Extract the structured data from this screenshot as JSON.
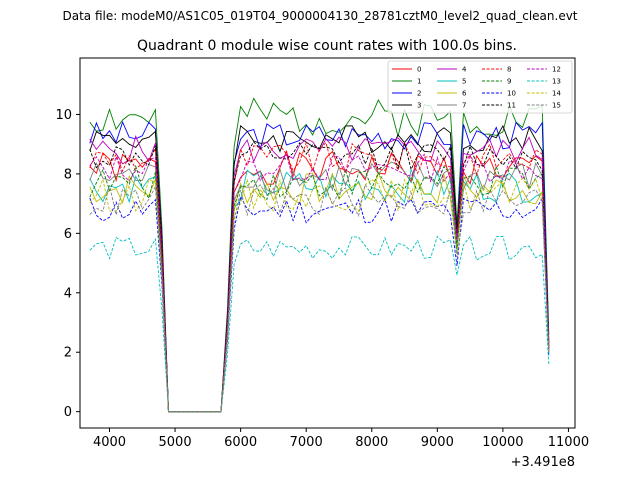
{
  "figure": {
    "suptitle": "Data file: modeM0/AS1C05_019T04_9000004130_28781cztM0_level2_quad_clean.evt"
  },
  "chart_data": {
    "type": "line",
    "title": "Quadrant 0 module wise count rates with 100.0s bins.",
    "xlabel": "",
    "ylabel": "",
    "x_offset_label": "+3.491e8",
    "xlim": [
      3550,
      11100
    ],
    "ylim": [
      -0.55,
      11.9
    ],
    "xticks": [
      4000,
      5000,
      6000,
      7000,
      8000,
      9000,
      10000,
      11000
    ],
    "yticks": [
      0,
      2,
      4,
      6,
      8,
      10
    ],
    "legend_position": "upper right",
    "legend_columns": 4,
    "series": [
      {
        "name": "0",
        "color": "#ff0000",
        "dash": "solid",
        "base": 8.2,
        "amp": 0.35,
        "tailend": 2.1,
        "dip": 5.8,
        "seed": 1
      },
      {
        "name": "1",
        "color": "#008000",
        "dash": "solid",
        "base": 9.9,
        "amp": 0.4,
        "tailend": 2.6,
        "dip": 6.3,
        "seed": 2
      },
      {
        "name": "2",
        "color": "#0000ff",
        "dash": "solid",
        "base": 9.3,
        "amp": 0.3,
        "tailend": 2.4,
        "dip": 6.0,
        "seed": 3
      },
      {
        "name": "3",
        "color": "#000000",
        "dash": "solid",
        "base": 9.2,
        "amp": 0.3,
        "tailend": 2.3,
        "dip": 6.1,
        "seed": 4
      },
      {
        "name": "4",
        "color": "#bf00bf",
        "dash": "solid",
        "base": 8.8,
        "amp": 0.3,
        "tailend": 2.2,
        "dip": 5.9,
        "seed": 5
      },
      {
        "name": "5",
        "color": "#00bfbf",
        "dash": "solid",
        "base": 7.6,
        "amp": 0.35,
        "tailend": 2.0,
        "dip": 5.4,
        "seed": 6
      },
      {
        "name": "6",
        "color": "#bfbf00",
        "dash": "solid",
        "base": 7.5,
        "amp": 0.35,
        "tailend": 2.0,
        "dip": 5.5,
        "seed": 7
      },
      {
        "name": "7",
        "color": "#808080",
        "dash": "solid",
        "base": 7.9,
        "amp": 0.35,
        "tailend": 2.1,
        "dip": 5.6,
        "seed": 8
      },
      {
        "name": "8",
        "color": "#ff0000",
        "dash": "dashed",
        "base": 8.5,
        "amp": 0.35,
        "tailend": 2.2,
        "dip": 5.9,
        "seed": 9
      },
      {
        "name": "9",
        "color": "#008000",
        "dash": "dashed",
        "base": 7.7,
        "amp": 0.35,
        "tailend": 2.0,
        "dip": 5.5,
        "seed": 10
      },
      {
        "name": "10",
        "color": "#0000ff",
        "dash": "dashed",
        "base": 6.8,
        "amp": 0.3,
        "tailend": 1.9,
        "dip": 4.9,
        "seed": 11
      },
      {
        "name": "11",
        "color": "#000000",
        "dash": "dashed",
        "base": 8.6,
        "amp": 0.3,
        "tailend": 2.2,
        "dip": 6.0,
        "seed": 12
      },
      {
        "name": "12",
        "color": "#bf00bf",
        "dash": "dashed",
        "base": 8.2,
        "amp": 0.3,
        "tailend": 2.1,
        "dip": 5.8,
        "seed": 13
      },
      {
        "name": "13",
        "color": "#00bfbf",
        "dash": "dashed",
        "base": 5.5,
        "amp": 0.25,
        "tailend": 1.6,
        "dip": 4.6,
        "seed": 14
      },
      {
        "name": "14",
        "color": "#bfbf00",
        "dash": "dashed",
        "base": 7.3,
        "amp": 0.35,
        "tailend": 2.0,
        "dip": 5.3,
        "seed": 15
      },
      {
        "name": "15",
        "color": "#808080",
        "dash": "dashed",
        "base": 7.1,
        "amp": 0.35,
        "tailend": 2.0,
        "dip": 5.2,
        "seed": 16
      }
    ],
    "time_profile": {
      "x_start": 3700,
      "bin": 100,
      "gap_start": 4900,
      "gap_end": 5700,
      "ramp_up_end": 5900,
      "dip_center": 9300,
      "x_end": 10700
    }
  }
}
